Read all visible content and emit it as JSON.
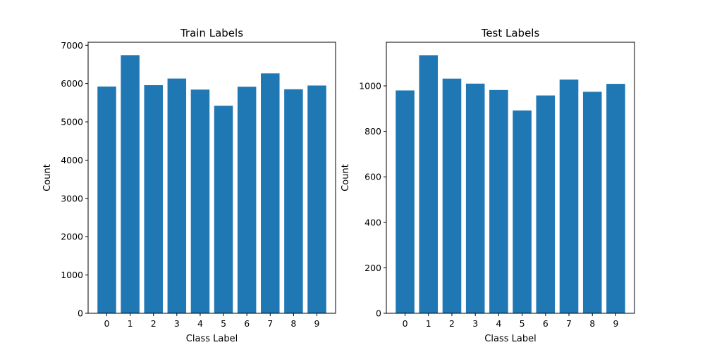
{
  "chart_data": [
    {
      "type": "bar",
      "title": "Train Labels",
      "xlabel": "Class Label",
      "ylabel": "Count",
      "categories": [
        "0",
        "1",
        "2",
        "3",
        "4",
        "5",
        "6",
        "7",
        "8",
        "9"
      ],
      "values": [
        5923,
        6742,
        5958,
        6131,
        5842,
        5421,
        5918,
        6265,
        5851,
        5949
      ],
      "ylim": [
        0,
        7079
      ],
      "yticks": [
        0,
        1000,
        2000,
        3000,
        4000,
        5000,
        6000,
        7000
      ],
      "color": "#1f77b4",
      "grid": false,
      "legend": "none"
    },
    {
      "type": "bar",
      "title": "Test Labels",
      "xlabel": "Class Label",
      "ylabel": "Count",
      "categories": [
        "0",
        "1",
        "2",
        "3",
        "4",
        "5",
        "6",
        "7",
        "8",
        "9"
      ],
      "values": [
        980,
        1135,
        1032,
        1010,
        982,
        892,
        958,
        1028,
        974,
        1009
      ],
      "ylim": [
        0,
        1192
      ],
      "yticks": [
        0,
        200,
        400,
        600,
        800,
        1000
      ],
      "color": "#1f77b4",
      "grid": false,
      "legend": "none"
    }
  ]
}
